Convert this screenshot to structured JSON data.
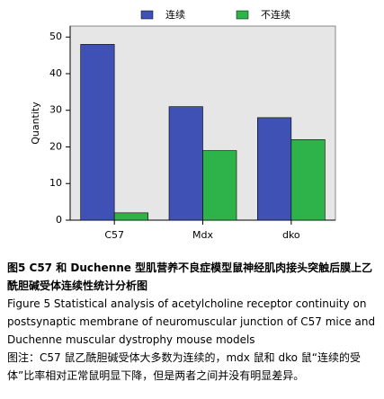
{
  "chart_data": {
    "type": "bar",
    "y_label": "Quantity",
    "categories": [
      "C57",
      "Mdx",
      "dko"
    ],
    "series": [
      {
        "name": "连续",
        "color": "#3f51b5",
        "values": [
          48,
          31,
          28
        ]
      },
      {
        "name": "不连续",
        "color": "#2db34a",
        "values": [
          2,
          19,
          22
        ]
      }
    ],
    "ylim": [
      0,
      53
    ],
    "yticks": [
      0,
      10,
      20,
      30,
      40,
      50
    ],
    "background": "#e6e6e6"
  },
  "caption": {
    "title_cn": "图5  C57 和 Duchenne 型肌营养不良症模型鼠神经肌肉接头突触后膜上乙酰胆碱受体连续性统计分析图",
    "title_en": "Figure 5  Statistical analysis of acetylcholine receptor continuity on postsynaptic membrane of neuromuscular junction of C57 mice and Duchenne muscular dystrophy mouse models",
    "note": "图注：C57 鼠乙酰胆碱受体大多数为连续的，mdx 鼠和 dko 鼠“连续的受体”比率相对正常鼠明显下降，但是两者之间并没有明显差异。"
  }
}
